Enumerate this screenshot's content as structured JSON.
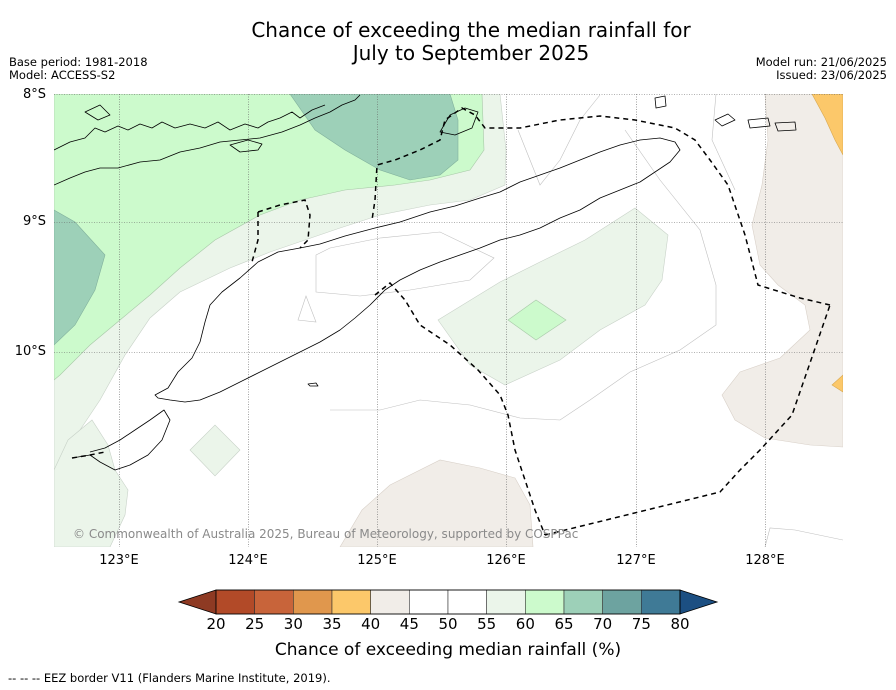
{
  "title_line1": "Chance of exceeding the median rainfall for",
  "title_line2": "July to September 2025",
  "meta_left": {
    "base_period": "Base period: 1981-2018",
    "model": "Model: ACCESS-S2"
  },
  "meta_right": {
    "model_run": "Model run: 21/06/2025",
    "issued": "Issued: 23/06/2025"
  },
  "lat_labels": [
    "8°S",
    "9°S",
    "10°S"
  ],
  "lon_labels": [
    "123°E",
    "124°E",
    "125°E",
    "126°E",
    "127°E",
    "128°E"
  ],
  "copyright": "© Commonwealth of Australia 2025, Bureau of Meteorology, supported by COSPPac",
  "colorbar": {
    "ticks": [
      "20",
      "25",
      "30",
      "35",
      "40",
      "45",
      "50",
      "55",
      "60",
      "65",
      "70",
      "75",
      "80"
    ],
    "colors": [
      "#b24a28",
      "#c8643a",
      "#e0974d",
      "#fcc86a",
      "#f1ede8",
      "#ffffff",
      "#ffffff",
      "#ebf5ea",
      "#ccfacc",
      "#9dd0b8",
      "#6da3a0",
      "#3f7a96"
    ],
    "under_color": "#8e3a23",
    "over_color": "#1c4f82",
    "label": "Chance of exceeding median rainfall (%)"
  },
  "footnote": "--  --  -- EEZ border V11 (Flanders Marine Institute, 2019)."
}
